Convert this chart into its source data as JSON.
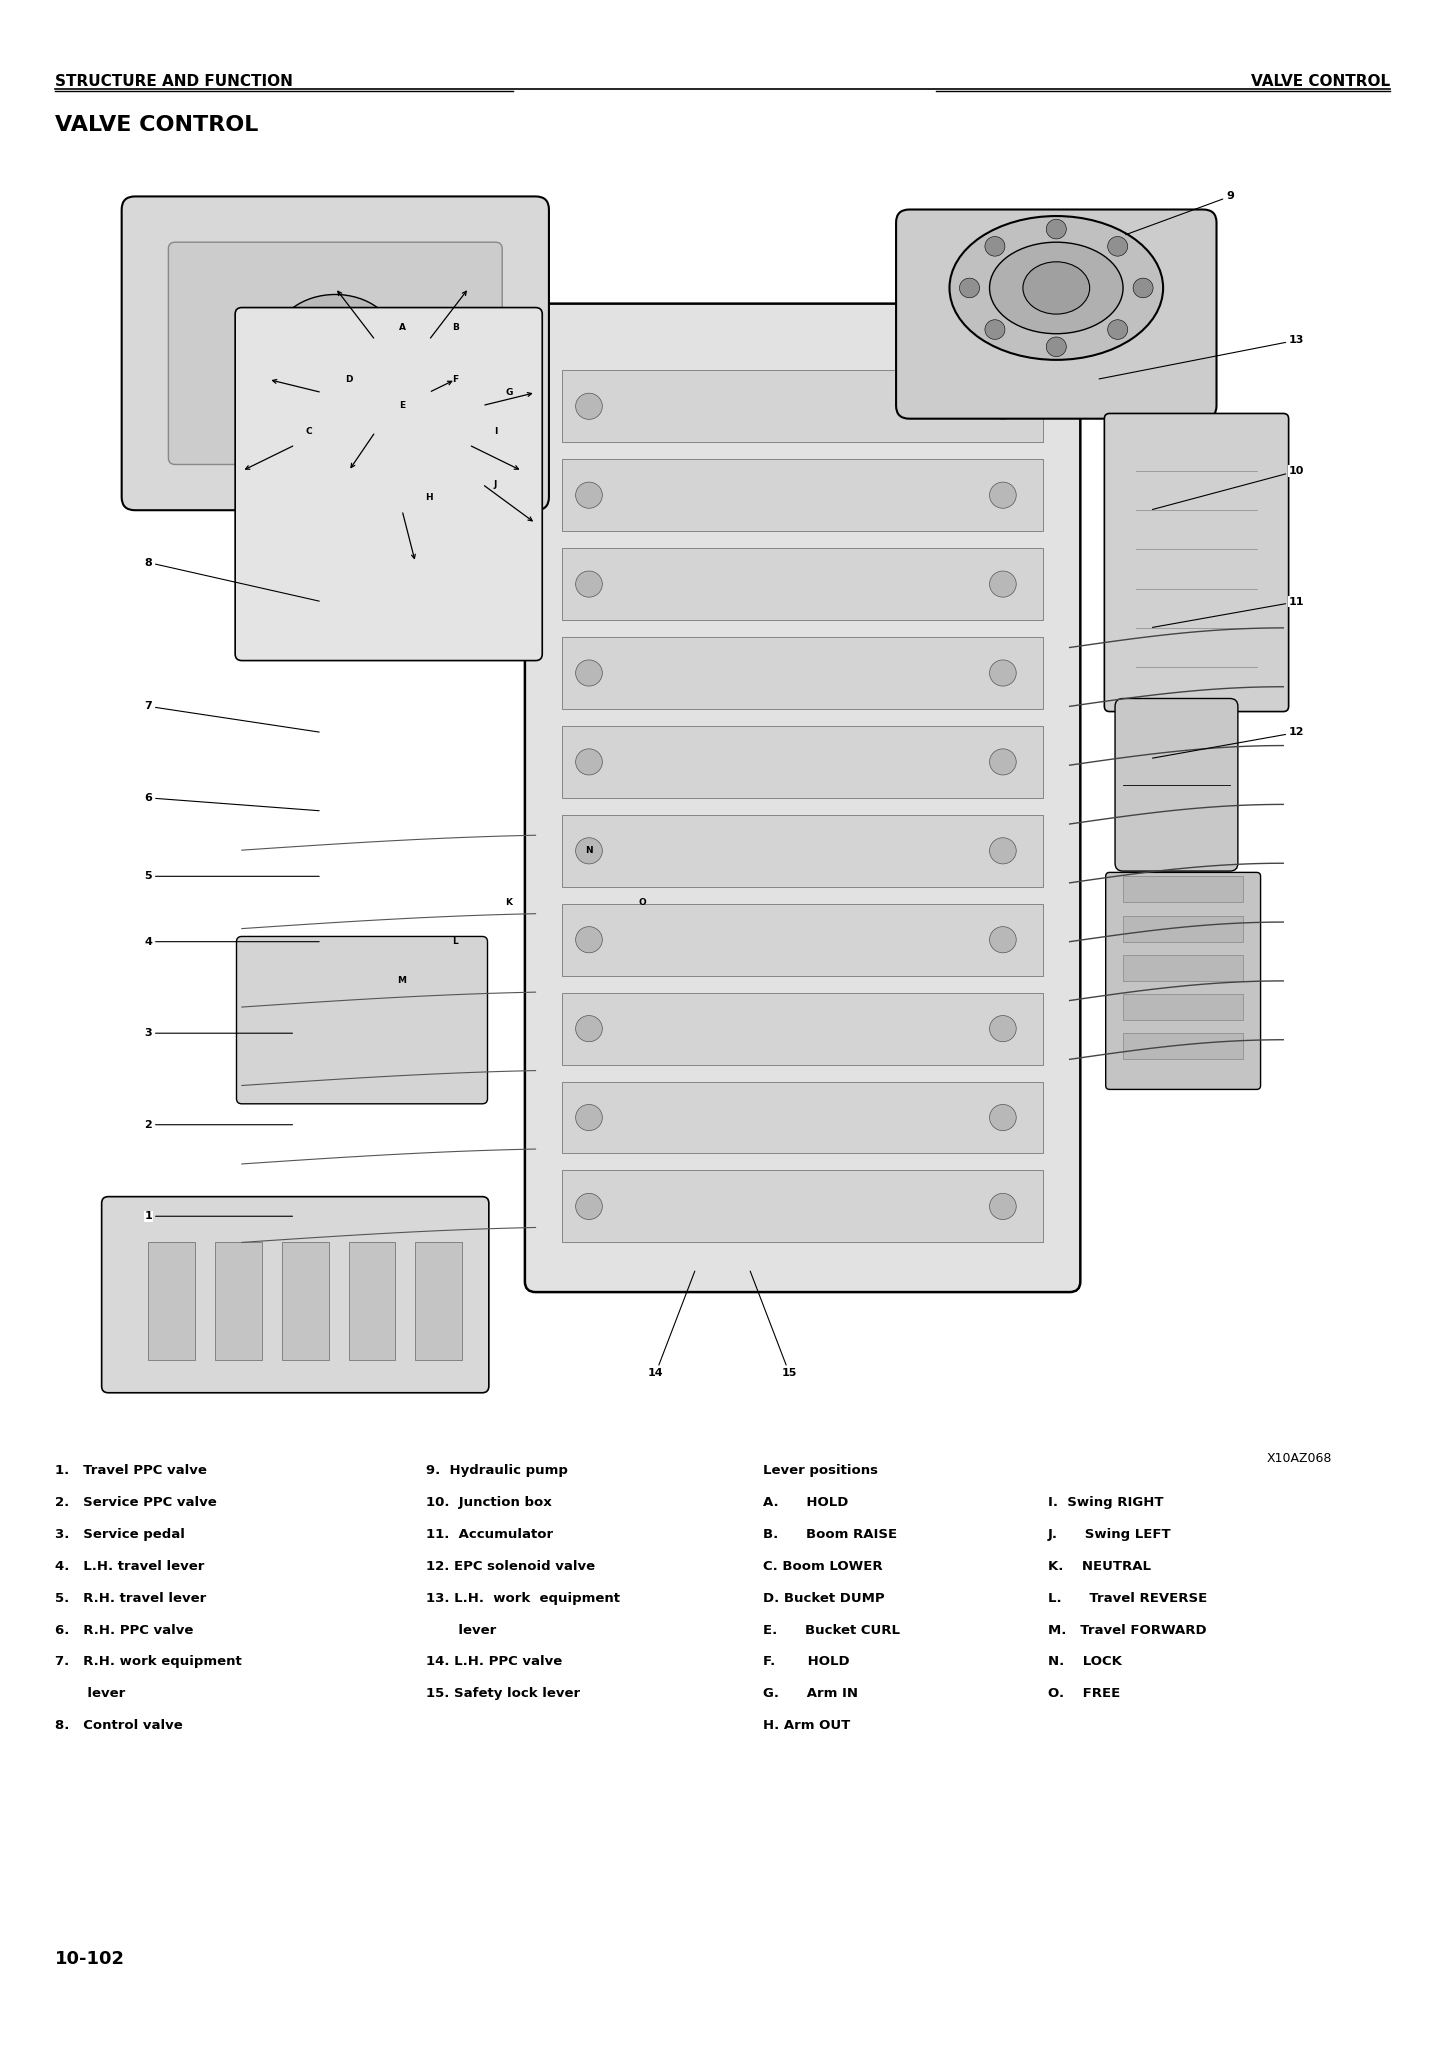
{
  "page_width": 14.45,
  "page_height": 20.59,
  "dpi": 100,
  "background_color": "#ffffff",
  "font_color": "#000000",
  "header_left": "STRUCTURE AND FUNCTION",
  "header_right": "VALVE CONTROL",
  "section_title": "VALVE CONTROL",
  "figure_ref": "X10AZ068",
  "page_number": "10-102",
  "header_font_size": 11,
  "title_font_size": 16,
  "caption_font_size": 9.5,
  "figure_ref_font_size": 9,
  "page_num_font_size": 13,
  "caption_col1": [
    "1.   Travel PPC valve",
    "2.   Service PPC valve",
    "3.   Service pedal",
    "4.   L.H. travel lever",
    "5.   R.H. travel lever",
    "6.   R.H. PPC valve",
    "7.   R.H. work equipment",
    "       lever",
    "8.   Control valve"
  ],
  "caption_col2": [
    "9.  Hydraulic pump",
    "10.  Junction box",
    "11.  Accumulator",
    "12. EPC solenoid valve",
    "13. L.H.  work  equipment",
    "       lever",
    "14. L.H. PPC valve",
    "15. Safety lock lever"
  ],
  "caption_col3_title": "Lever positions",
  "caption_col3": [
    "A.      HOLD",
    "B.      Boom RAISE",
    "C. Boom LOWER",
    "D. Bucket DUMP",
    "E.      Bucket CURL",
    "F.       HOLD",
    "G.      Arm IN",
    "H. Arm OUT"
  ],
  "caption_col4": [
    "I.  Swing RIGHT",
    "J.      Swing LEFT",
    "K.    NEUTRAL",
    "L.      Travel REVERSE",
    "M.   Travel FORWARD",
    "N.    LOCK",
    "O.    FREE"
  ],
  "diagram_number_labels": [
    [
      "9",
      88,
      96,
      80,
      93
    ],
    [
      "8",
      7,
      68,
      20,
      65
    ],
    [
      "7",
      7,
      57,
      20,
      55
    ],
    [
      "6",
      7,
      50,
      20,
      49
    ],
    [
      "5",
      7,
      44,
      20,
      44
    ],
    [
      "4",
      7,
      39,
      20,
      39
    ],
    [
      "3",
      7,
      32,
      18,
      32
    ],
    [
      "2",
      7,
      25,
      18,
      25
    ],
    [
      "1",
      7,
      18,
      18,
      18
    ],
    [
      "10",
      93,
      75,
      82,
      72
    ],
    [
      "11",
      93,
      65,
      82,
      63
    ],
    [
      "12",
      93,
      55,
      82,
      53
    ],
    [
      "13",
      93,
      85,
      78,
      82
    ],
    [
      "14",
      45,
      6,
      48,
      14
    ],
    [
      "15",
      55,
      6,
      52,
      14
    ]
  ],
  "diagram_letter_labels": [
    [
      "A",
      26,
      86
    ],
    [
      "B",
      30,
      86
    ],
    [
      "D",
      22,
      82
    ],
    [
      "E",
      26,
      80
    ],
    [
      "C",
      19,
      78
    ],
    [
      "F",
      30,
      82
    ],
    [
      "G",
      34,
      81
    ],
    [
      "I",
      33,
      78
    ],
    [
      "H",
      28,
      73
    ],
    [
      "J",
      33,
      74
    ]
  ],
  "diagram_bottom_labels": [
    [
      "M",
      26,
      36
    ],
    [
      "K",
      34,
      42
    ],
    [
      "L",
      30,
      39
    ],
    [
      "N",
      40,
      46
    ],
    [
      "O",
      44,
      42
    ]
  ]
}
